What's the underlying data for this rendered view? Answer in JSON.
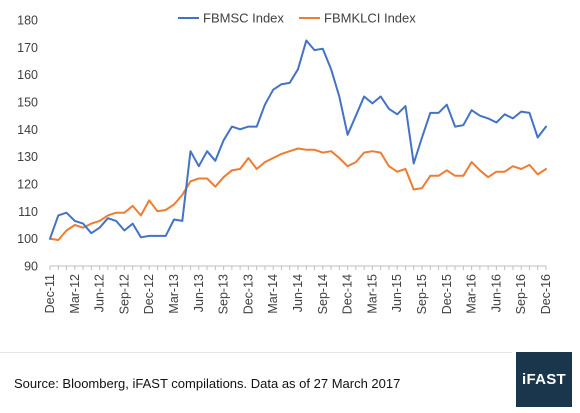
{
  "chart_data": {
    "type": "line",
    "title": "",
    "xlabel": "",
    "ylabel": "",
    "ylim": [
      90,
      180
    ],
    "yticks": [
      90,
      100,
      110,
      120,
      130,
      140,
      150,
      160,
      170,
      180
    ],
    "grid": false,
    "legend_position": "top",
    "x_tick_labels": [
      "Dec-11",
      "Mar-12",
      "Jun-12",
      "Sep-12",
      "Dec-12",
      "Mar-13",
      "Jun-13",
      "Sep-13",
      "Dec-13",
      "Mar-14",
      "Jun-14",
      "Sep-14",
      "Dec-14",
      "Mar-15",
      "Jun-15",
      "Sep-15",
      "Dec-15",
      "Mar-16",
      "Jun-16",
      "Sep-16",
      "Dec-16"
    ],
    "x": [
      "Dec-11",
      "Jan-12",
      "Feb-12",
      "Mar-12",
      "Apr-12",
      "May-12",
      "Jun-12",
      "Jul-12",
      "Aug-12",
      "Sep-12",
      "Oct-12",
      "Nov-12",
      "Dec-12",
      "Jan-13",
      "Feb-13",
      "Mar-13",
      "Apr-13",
      "May-13",
      "Jun-13",
      "Jul-13",
      "Aug-13",
      "Sep-13",
      "Oct-13",
      "Nov-13",
      "Dec-13",
      "Jan-14",
      "Feb-14",
      "Mar-14",
      "Apr-14",
      "May-14",
      "Jun-14",
      "Jul-14",
      "Aug-14",
      "Sep-14",
      "Oct-14",
      "Nov-14",
      "Dec-14",
      "Jan-15",
      "Feb-15",
      "Mar-15",
      "Apr-15",
      "May-15",
      "Jun-15",
      "Jul-15",
      "Aug-15",
      "Sep-15",
      "Oct-15",
      "Nov-15",
      "Dec-15",
      "Jan-16",
      "Feb-16",
      "Mar-16",
      "Apr-16",
      "May-16",
      "Jun-16",
      "Jul-16",
      "Aug-16",
      "Sep-16",
      "Oct-16",
      "Nov-16",
      "Dec-16"
    ],
    "series": [
      {
        "name": "FBMSC Index",
        "color": "#4472C4",
        "values": [
          100,
          108.5,
          109.5,
          106.5,
          105.5,
          102,
          104,
          107.5,
          106.5,
          103,
          105.5,
          100.5,
          101,
          101,
          101,
          107,
          106.5,
          132,
          126.5,
          132,
          128.5,
          136,
          141,
          140,
          141,
          141,
          149,
          154.5,
          156.5,
          157,
          162,
          172.5,
          169,
          169.5,
          162,
          152,
          138,
          145,
          152,
          149.5,
          152,
          147.5,
          145.5,
          148.5,
          127.5,
          137,
          146,
          146,
          149,
          141,
          141.5,
          147,
          145,
          144,
          142.5,
          145.5,
          144,
          146.5,
          146,
          137,
          141
        ]
      },
      {
        "name": "FBMKLCI Index",
        "color": "#ED7D31",
        "values": [
          100,
          99.5,
          103,
          105,
          104,
          105.5,
          106.5,
          108.5,
          109.5,
          109.5,
          112,
          108.5,
          114,
          110,
          110.5,
          112.5,
          116,
          121,
          122,
          122,
          119,
          122.5,
          125,
          125.5,
          129.5,
          125.5,
          128,
          129.5,
          131,
          132,
          133,
          132.5,
          132.5,
          131.5,
          132,
          129.5,
          126.5,
          128,
          131.5,
          132,
          131.5,
          126.5,
          124.5,
          125.5,
          118,
          118.5,
          123,
          123,
          125,
          123,
          123,
          128,
          125,
          122.5,
          124.5,
          124.5,
          126.5,
          125.5,
          127,
          123.5,
          125.5
        ]
      }
    ]
  },
  "footer": {
    "source_text": "Source: Bloomberg, iFAST compilations. Data as of 27 March 2017",
    "logo_text": "iFAST",
    "logo_color": "#19364D"
  }
}
